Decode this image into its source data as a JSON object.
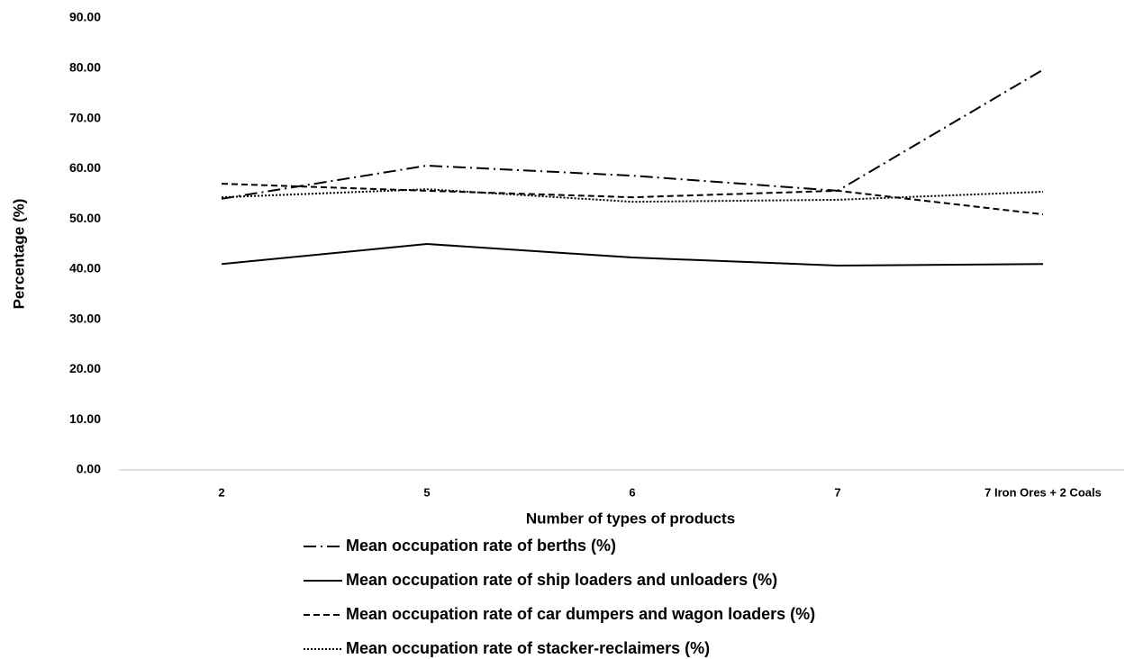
{
  "chart_data": {
    "type": "line",
    "x_label": "Number of types of products",
    "y_label": "Percentage (%)",
    "categories": [
      "2",
      "5",
      "6",
      "7",
      "7 Iron Ores + 2 Coals"
    ],
    "series": [
      {
        "name": "Mean occupation rate of berths (%)",
        "color": "#000000",
        "dash": "dashdot",
        "values": [
          54.0,
          60.6,
          58.6,
          55.6,
          79.7
        ]
      },
      {
        "name": "Mean occupation rate of ship loaders and unloaders (%)",
        "color": "#000000",
        "dash": "solid",
        "values": [
          41.0,
          45.0,
          42.3,
          40.7,
          41.0
        ]
      },
      {
        "name": "Mean occupation rate of car dumpers and wagon loaders (%)",
        "color": "#000000",
        "dash": "dashed",
        "values": [
          57.0,
          55.6,
          54.3,
          55.6,
          50.9
        ]
      },
      {
        "name": "Mean occupation rate of stacker-reclaimers (%)",
        "color": "#000000",
        "dash": "dotted",
        "values": [
          54.3,
          55.9,
          53.4,
          53.8,
          55.4
        ]
      }
    ],
    "ylim": [
      0,
      90
    ],
    "yticks": [
      {
        "value": 0,
        "label": "0.00"
      },
      {
        "value": 10,
        "label": "10.00"
      },
      {
        "value": 20,
        "label": "20.00"
      },
      {
        "value": 30,
        "label": "30.00"
      },
      {
        "value": 40,
        "label": "40.00"
      },
      {
        "value": 50,
        "label": "50.00"
      },
      {
        "value": 60,
        "label": "60.00"
      },
      {
        "value": 70,
        "label": "70.00"
      },
      {
        "value": 80,
        "label": "80.00"
      },
      {
        "value": 90,
        "label": "90.00"
      }
    ],
    "grid": false,
    "legend": "bottom"
  }
}
